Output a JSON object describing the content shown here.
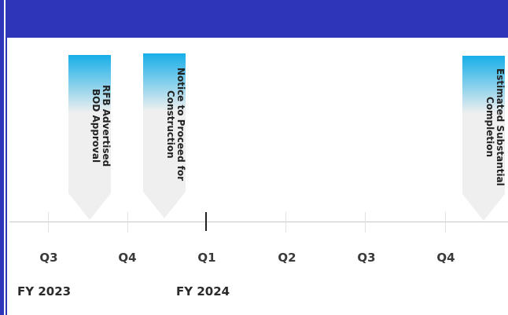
{
  "timeline": {
    "quarters": [
      "Q3",
      "Q4",
      "Q1",
      "Q2",
      "Q3",
      "Q4"
    ],
    "fiscal_years": [
      "FY 2023",
      "FY 2024"
    ],
    "milestones": [
      {
        "line1": "RFB Advertised",
        "line2": "BOD Approval"
      },
      {
        "line1": "Notice to Proceed for",
        "line2": "Construction"
      },
      {
        "line1": "Estimated Substantial",
        "line2": "Completion"
      }
    ]
  },
  "colors": {
    "header": "#2e35b8",
    "milestone_top": "#17aee8",
    "milestone_body": "#efefef"
  }
}
